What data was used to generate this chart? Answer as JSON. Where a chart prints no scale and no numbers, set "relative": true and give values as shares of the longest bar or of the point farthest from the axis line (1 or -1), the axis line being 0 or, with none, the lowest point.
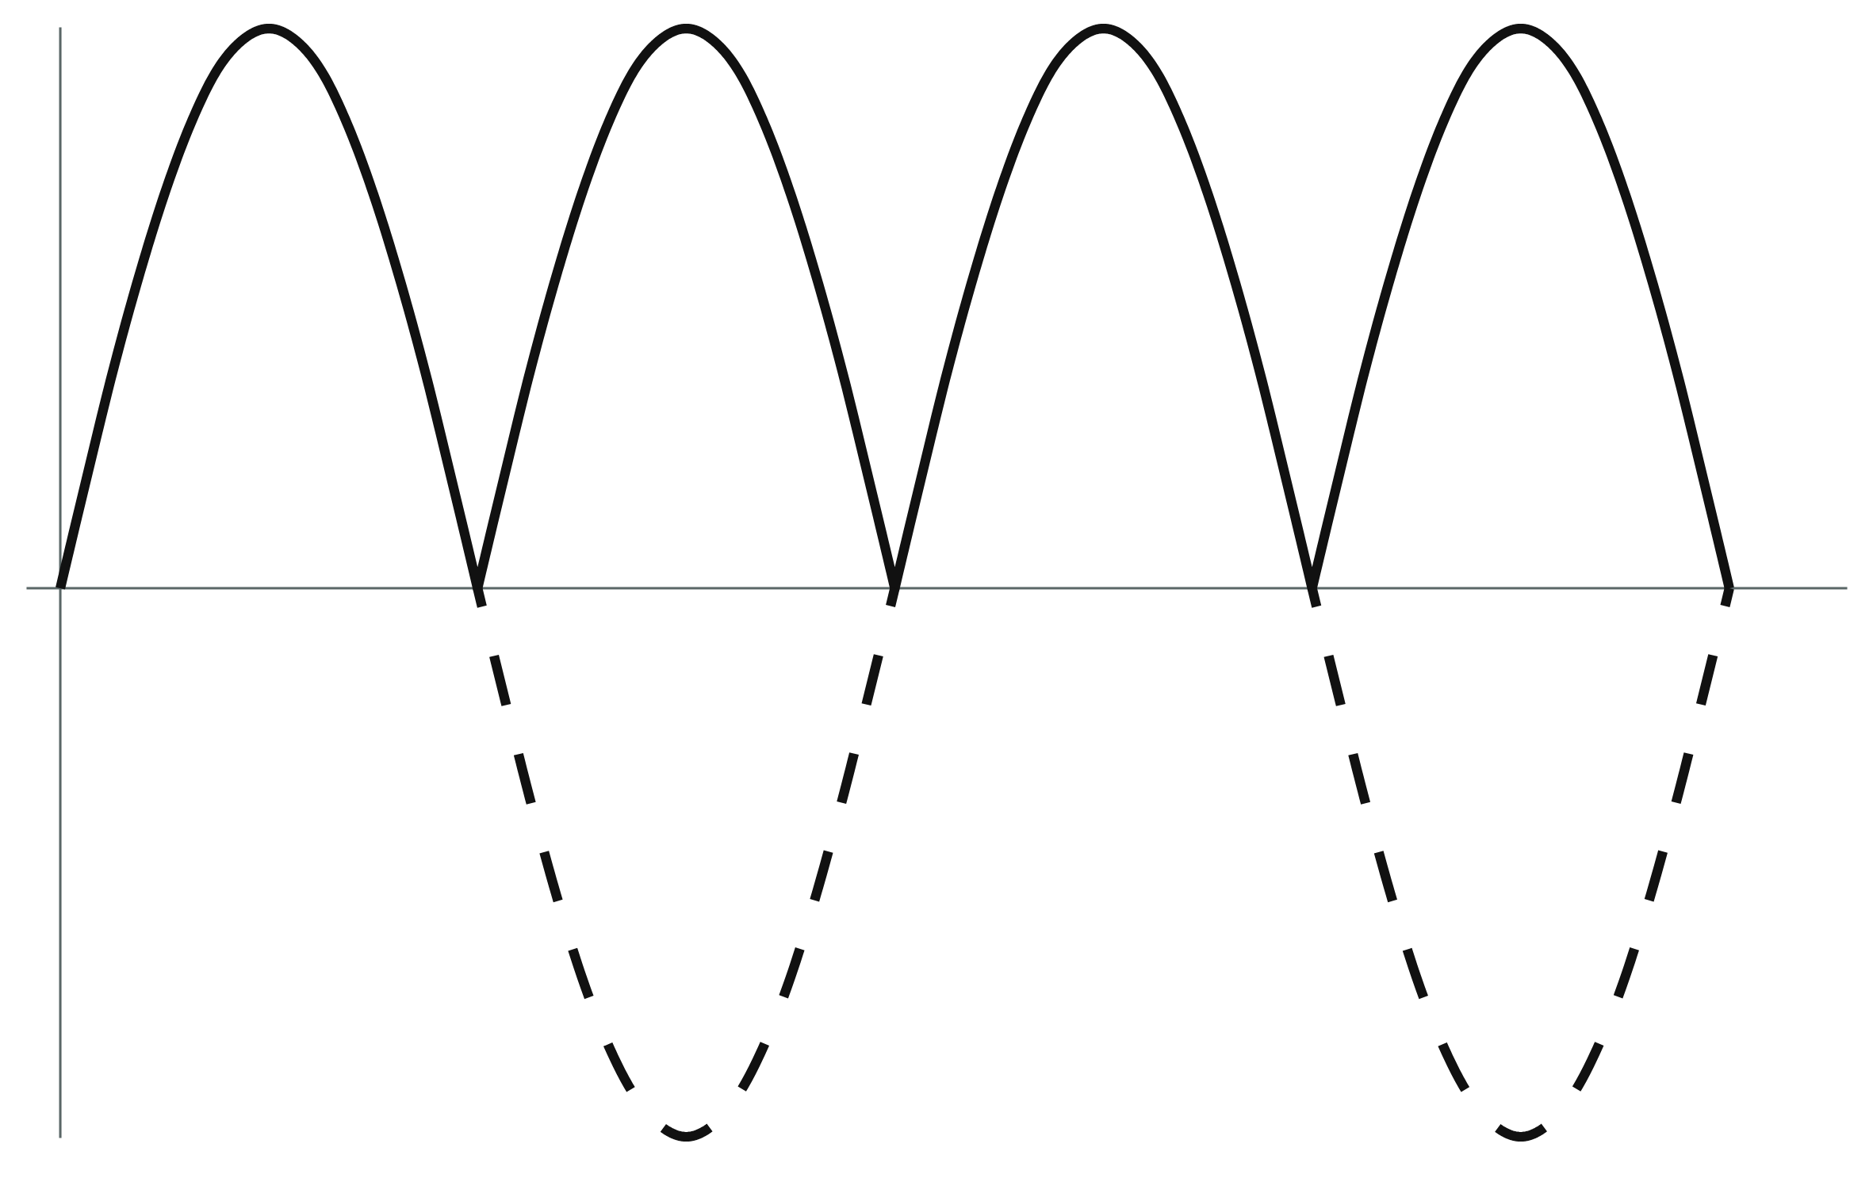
{
  "chart_data": {
    "type": "line",
    "relative": true,
    "categories": [
      null,
      null,
      null,
      null,
      null,
      null,
      null,
      null,
      null,
      null,
      null,
      null,
      null,
      null,
      null,
      null,
      null,
      null,
      null,
      null,
      null,
      null,
      null,
      null,
      null,
      null,
      null,
      null,
      null,
      null,
      null,
      null,
      null,
      null,
      null,
      null,
      null,
      null,
      null,
      null,
      null,
      null,
      null,
      null,
      null,
      null,
      null,
      null,
      null,
      null,
      null,
      null,
      null,
      null,
      null,
      null,
      null,
      null,
      null,
      null,
      null,
      null,
      null,
      null,
      null
    ],
    "series": [
      {
        "color": "#111111",
        "line_style": "solid",
        "values": [
          0,
          0.195,
          0.385,
          0.555,
          0.705,
          0.83,
          0.925,
          0.98,
          1,
          0.98,
          0.925,
          0.83,
          0.705,
          0.555,
          0.385,
          0.195,
          0,
          0.195,
          0.385,
          0.555,
          0.705,
          0.83,
          0.925,
          0.98,
          1,
          0.98,
          0.925,
          0.83,
          0.705,
          0.555,
          0.385,
          0.195,
          0,
          0.195,
          0.385,
          0.555,
          0.705,
          0.83,
          0.925,
          0.98,
          1,
          0.98,
          0.925,
          0.83,
          0.705,
          0.555,
          0.385,
          0.195,
          0,
          0.195,
          0.385,
          0.555,
          0.705,
          0.83,
          0.925,
          0.98,
          1,
          0.98,
          0.925,
          0.83,
          0.705,
          0.555,
          0.385,
          0.195,
          0
        ]
      },
      {
        "color": "#111111",
        "line_style": "dashed",
        "values": [
          null,
          null,
          null,
          null,
          null,
          null,
          null,
          null,
          null,
          null,
          null,
          null,
          null,
          null,
          null,
          null,
          0,
          -0.19,
          -0.375,
          -0.545,
          -0.695,
          -0.815,
          -0.905,
          -0.96,
          -0.98,
          -0.96,
          -0.905,
          -0.815,
          -0.695,
          -0.545,
          -0.375,
          -0.19,
          0,
          null,
          null,
          null,
          null,
          null,
          null,
          null,
          null,
          null,
          null,
          null,
          null,
          null,
          null,
          null,
          0,
          -0.19,
          -0.375,
          -0.545,
          -0.695,
          -0.815,
          -0.905,
          -0.96,
          -0.98,
          -0.96,
          -0.905,
          -0.815,
          -0.695,
          -0.545,
          -0.375,
          -0.19,
          0
        ]
      }
    ]
  }
}
